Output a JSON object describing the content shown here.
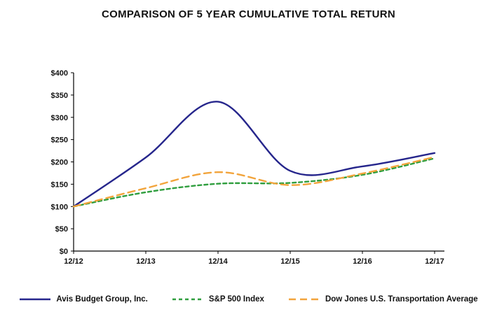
{
  "title": "COMPARISON OF 5 YEAR CUMULATIVE TOTAL RETURN",
  "chart_data": {
    "type": "line",
    "title": "COMPARISON OF 5 YEAR CUMULATIVE TOTAL RETURN",
    "x": [
      "12/12",
      "12/13",
      "12/14",
      "12/15",
      "12/16",
      "12/17"
    ],
    "series": [
      {
        "name": "Avis Budget Group, Inc.",
        "color": "#26268c",
        "dash": "solid",
        "values": [
          100,
          210,
          335,
          180,
          190,
          220
        ]
      },
      {
        "name": "S&P 500 Index",
        "color": "#2f9e3e",
        "dash": "dashed",
        "values": [
          100,
          132,
          151,
          153,
          171,
          208
        ]
      },
      {
        "name": "Dow Jones U.S. Transportation Average",
        "color": "#f2a43c",
        "dash": "long-dash",
        "values": [
          100,
          141,
          177,
          148,
          174,
          211
        ]
      }
    ],
    "xlabel": "",
    "ylabel": "",
    "ylim": [
      0,
      400
    ],
    "ytick_values": [
      0,
      50,
      100,
      150,
      200,
      250,
      300,
      350,
      400
    ],
    "ytick_labels": [
      "$0",
      "$50",
      "$100",
      "$150",
      "$200",
      "$250",
      "$300",
      "$350",
      "$400"
    ],
    "grid": false,
    "legend_position": "bottom",
    "axis_color": "#000000",
    "label_color": "#111111"
  }
}
